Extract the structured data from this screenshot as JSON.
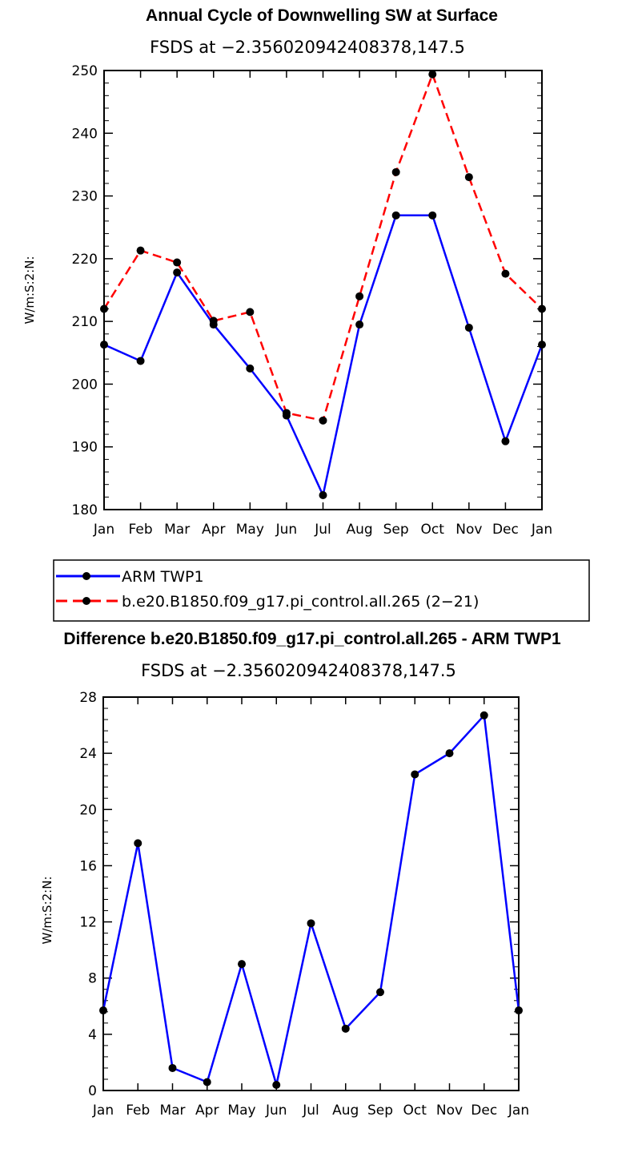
{
  "chart_data": [
    {
      "type": "line",
      "title": "Annual Cycle of Downwelling SW at Surface",
      "subtitle": "FSDS at −2.356020942408378,147.5",
      "ylabel": "W/m:S:2:N:",
      "xlabel": "",
      "categories": [
        "Jan",
        "Feb",
        "Mar",
        "Apr",
        "May",
        "Jun",
        "Jul",
        "Aug",
        "Sep",
        "Oct",
        "Nov",
        "Dec",
        "Jan"
      ],
      "ylim": [
        180,
        250
      ],
      "yticks": [
        "180",
        "190",
        "200",
        "210",
        "220",
        "230",
        "240",
        "250"
      ],
      "series": [
        {
          "name": "ARM TWP1",
          "color": "#0000ff",
          "dash": "solid",
          "values": [
            206.3,
            203.7,
            217.8,
            209.5,
            202.5,
            195.0,
            182.3,
            209.5,
            226.9,
            226.9,
            209.0,
            190.9,
            206.3
          ]
        },
        {
          "name": "b.e20.B1850.f09_g17.pi_control.all.265 (2−21)",
          "color": "#ff0000",
          "dash": "dashed",
          "values": [
            212.0,
            221.3,
            219.4,
            210.1,
            211.5,
            195.4,
            194.2,
            214.0,
            233.8,
            249.4,
            233.0,
            217.6,
            212.0
          ]
        }
      ]
    },
    {
      "type": "line",
      "title": "Difference b.e20.B1850.f09_g17.pi_control.all.265 - ARM TWP1",
      "subtitle": "FSDS at −2.356020942408378,147.5",
      "ylabel": "W/m:S:2:N:",
      "xlabel": "",
      "categories": [
        "Jan",
        "Feb",
        "Mar",
        "Apr",
        "May",
        "Jun",
        "Jul",
        "Aug",
        "Sep",
        "Oct",
        "Nov",
        "Dec",
        "Jan"
      ],
      "ylim": [
        0,
        28
      ],
      "yticks": [
        "0",
        "4",
        "8",
        "12",
        "16",
        "20",
        "24",
        "28"
      ],
      "series": [
        {
          "name": "Difference",
          "color": "#0000ff",
          "dash": "solid",
          "values": [
            5.7,
            17.6,
            1.6,
            0.6,
            9.0,
            0.4,
            11.9,
            4.4,
            7.0,
            22.5,
            24.0,
            26.7,
            5.7
          ]
        }
      ]
    }
  ]
}
